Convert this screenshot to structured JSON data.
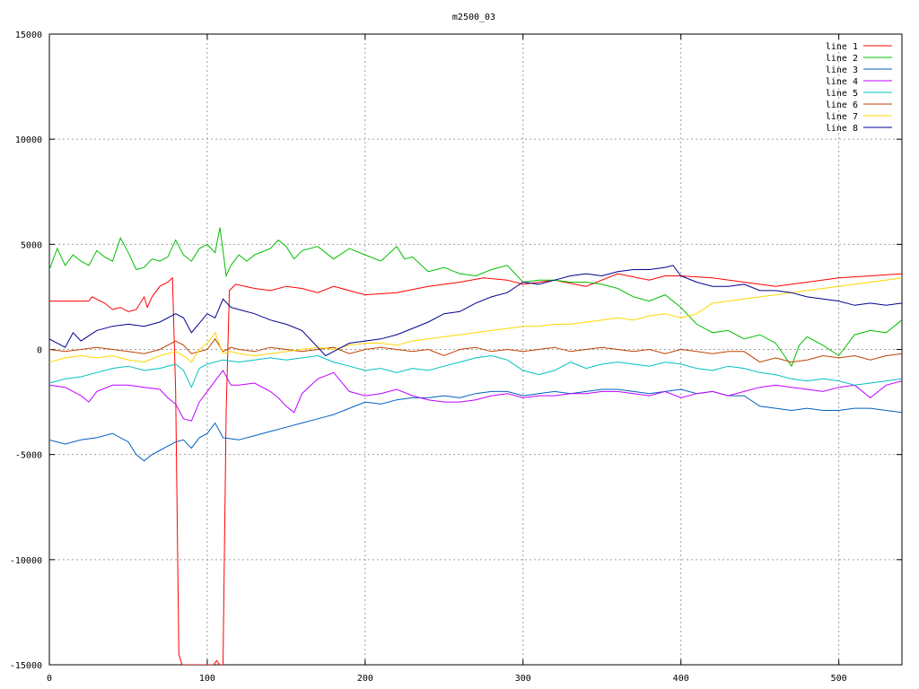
{
  "chart_data": {
    "type": "line",
    "title": "m2500_03",
    "xlabel": "",
    "ylabel": "",
    "xlim": [
      0,
      540
    ],
    "ylim": [
      -15000,
      15000
    ],
    "xticks": [
      0,
      100,
      200,
      300,
      400,
      500
    ],
    "yticks": [
      -15000,
      -10000,
      -5000,
      0,
      5000,
      10000,
      15000
    ],
    "grid": true,
    "legend_position": "top-right",
    "series": [
      {
        "name": "line 1",
        "color": "#ff0000",
        "x": [
          0,
          25,
          27,
          35,
          40,
          45,
          50,
          55,
          60,
          62,
          65,
          70,
          75,
          78,
          80,
          82,
          84,
          85,
          88,
          92,
          96,
          100,
          104,
          106,
          108,
          110,
          112,
          114,
          118,
          130,
          140,
          150,
          160,
          170,
          180,
          200,
          220,
          240,
          260,
          275,
          290,
          300,
          320,
          340,
          360,
          380,
          390,
          400,
          420,
          440,
          460,
          480,
          500,
          520,
          540
        ],
        "y": [
          2300,
          2300,
          2500,
          2200,
          1900,
          2000,
          1800,
          1900,
          2500,
          2000,
          2500,
          3000,
          3200,
          3400,
          -2000,
          -14500,
          -15000,
          -15000,
          -15000,
          -15000,
          -15000,
          -15000,
          -15000,
          -14800,
          -15000,
          -15000,
          -3000,
          2800,
          3100,
          2900,
          2800,
          3000,
          2900,
          2700,
          3000,
          2600,
          2700,
          3000,
          3200,
          3400,
          3300,
          3100,
          3300,
          3000,
          3600,
          3300,
          3500,
          3500,
          3400,
          3200,
          3000,
          3200,
          3400,
          3500,
          3600
        ]
      },
      {
        "name": "line 2",
        "color": "#00c000",
        "x": [
          0,
          5,
          10,
          15,
          20,
          25,
          30,
          35,
          40,
          45,
          50,
          55,
          60,
          65,
          70,
          75,
          80,
          85,
          90,
          95,
          100,
          105,
          108,
          110,
          112,
          115,
          120,
          125,
          130,
          140,
          145,
          150,
          155,
          160,
          170,
          180,
          190,
          200,
          210,
          220,
          225,
          230,
          240,
          250,
          260,
          270,
          280,
          290,
          300,
          310,
          320,
          330,
          340,
          350,
          360,
          370,
          380,
          390,
          400,
          410,
          420,
          430,
          440,
          450,
          460,
          470,
          475,
          480,
          490,
          500,
          510,
          520,
          530,
          540
        ],
        "y": [
          3800,
          4800,
          4000,
          4500,
          4200,
          4000,
          4700,
          4400,
          4200,
          5300,
          4600,
          3800,
          3900,
          4300,
          4200,
          4400,
          5200,
          4500,
          4200,
          4800,
          5000,
          4600,
          5800,
          4700,
          3500,
          4000,
          4500,
          4200,
          4500,
          4800,
          5200,
          4900,
          4300,
          4700,
          4900,
          4300,
          4800,
          4500,
          4200,
          4900,
          4300,
          4400,
          3700,
          3900,
          3600,
          3500,
          3800,
          4000,
          3200,
          3300,
          3300,
          3200,
          3200,
          3100,
          2900,
          2500,
          2300,
          2600,
          2000,
          1200,
          800,
          900,
          500,
          700,
          300,
          -800,
          200,
          600,
          200,
          -300,
          700,
          900,
          800,
          1400
        ]
      },
      {
        "name": "line 3",
        "color": "#0060c0",
        "x": [
          0,
          10,
          20,
          30,
          40,
          50,
          55,
          60,
          65,
          70,
          75,
          80,
          85,
          90,
          95,
          100,
          105,
          110,
          120,
          130,
          140,
          150,
          160,
          170,
          180,
          190,
          200,
          210,
          220,
          230,
          240,
          250,
          260,
          270,
          280,
          290,
          300,
          310,
          320,
          330,
          340,
          350,
          360,
          370,
          380,
          390,
          400,
          410,
          420,
          430,
          440,
          450,
          460,
          470,
          480,
          490,
          500,
          510,
          520,
          530,
          540
        ],
        "y": [
          -4300,
          -4500,
          -4300,
          -4200,
          -4000,
          -4400,
          -5000,
          -5300,
          -5000,
          -4800,
          -4600,
          -4400,
          -4300,
          -4700,
          -4200,
          -4000,
          -3500,
          -4200,
          -4300,
          -4100,
          -3900,
          -3700,
          -3500,
          -3300,
          -3100,
          -2800,
          -2500,
          -2600,
          -2400,
          -2300,
          -2300,
          -2200,
          -2300,
          -2100,
          -2000,
          -2000,
          -2200,
          -2100,
          -2000,
          -2100,
          -2000,
          -1900,
          -1900,
          -2000,
          -2100,
          -2000,
          -1900,
          -2100,
          -2000,
          -2200,
          -2200,
          -2700,
          -2800,
          -2900,
          -2800,
          -2900,
          -2900,
          -2800,
          -2800,
          -2900,
          -3000
        ]
      },
      {
        "name": "line 4",
        "color": "#c000ff",
        "x": [
          0,
          10,
          20,
          25,
          30,
          40,
          50,
          60,
          70,
          75,
          80,
          85,
          90,
          95,
          100,
          105,
          110,
          115,
          120,
          130,
          140,
          145,
          150,
          155,
          160,
          170,
          180,
          190,
          200,
          210,
          220,
          230,
          240,
          250,
          260,
          270,
          280,
          290,
          300,
          310,
          320,
          330,
          340,
          350,
          360,
          370,
          380,
          390,
          400,
          410,
          420,
          430,
          440,
          450,
          460,
          470,
          480,
          490,
          500,
          510,
          520,
          530,
          540
        ],
        "y": [
          -1700,
          -1800,
          -2200,
          -2500,
          -2000,
          -1700,
          -1700,
          -1800,
          -1900,
          -2300,
          -2600,
          -3300,
          -3400,
          -2500,
          -2000,
          -1500,
          -1000,
          -1700,
          -1700,
          -1600,
          -2000,
          -2300,
          -2700,
          -3000,
          -2100,
          -1400,
          -1100,
          -2000,
          -2200,
          -2100,
          -1900,
          -2200,
          -2400,
          -2500,
          -2500,
          -2400,
          -2200,
          -2100,
          -2300,
          -2200,
          -2200,
          -2100,
          -2100,
          -2000,
          -2000,
          -2100,
          -2200,
          -2000,
          -2300,
          -2100,
          -2000,
          -2200,
          -2000,
          -1800,
          -1700,
          -1800,
          -1900,
          -2000,
          -1800,
          -1700,
          -2300,
          -1700,
          -1500
        ]
      },
      {
        "name": "line 5",
        "color": "#00c0c0",
        "x": [
          0,
          10,
          20,
          30,
          40,
          50,
          60,
          70,
          80,
          85,
          90,
          95,
          100,
          110,
          120,
          130,
          140,
          150,
          160,
          170,
          180,
          190,
          200,
          210,
          220,
          230,
          240,
          250,
          260,
          270,
          280,
          290,
          300,
          310,
          320,
          330,
          340,
          350,
          360,
          370,
          380,
          390,
          400,
          410,
          420,
          430,
          440,
          450,
          460,
          470,
          480,
          490,
          500,
          510,
          520,
          530,
          540
        ],
        "y": [
          -1600,
          -1400,
          -1300,
          -1100,
          -900,
          -800,
          -1000,
          -900,
          -700,
          -1000,
          -1800,
          -900,
          -700,
          -500,
          -600,
          -500,
          -400,
          -500,
          -400,
          -300,
          -600,
          -800,
          -1000,
          -900,
          -1100,
          -900,
          -1000,
          -800,
          -600,
          -400,
          -300,
          -500,
          -1000,
          -1200,
          -1000,
          -600,
          -900,
          -700,
          -600,
          -700,
          -800,
          -600,
          -700,
          -900,
          -1000,
          -800,
          -900,
          -1100,
          -1200,
          -1400,
          -1500,
          -1400,
          -1500,
          -1700,
          -1600,
          -1500,
          -1400
        ]
      },
      {
        "name": "line 6",
        "color": "#c04000",
        "x": [
          0,
          10,
          20,
          30,
          40,
          50,
          60,
          70,
          80,
          85,
          90,
          95,
          100,
          105,
          110,
          115,
          120,
          130,
          140,
          150,
          160,
          170,
          180,
          190,
          200,
          210,
          220,
          230,
          240,
          250,
          260,
          270,
          280,
          290,
          300,
          310,
          320,
          330,
          340,
          350,
          360,
          370,
          380,
          390,
          400,
          410,
          420,
          430,
          440,
          450,
          460,
          470,
          480,
          490,
          500,
          510,
          520,
          530,
          540
        ],
        "y": [
          0,
          -100,
          0,
          100,
          0,
          -100,
          -200,
          0,
          400,
          200,
          -200,
          -100,
          0,
          500,
          -100,
          100,
          0,
          -100,
          100,
          0,
          -100,
          0,
          100,
          -200,
          0,
          100,
          0,
          -100,
          0,
          -300,
          0,
          100,
          -100,
          0,
          -100,
          0,
          100,
          -100,
          0,
          100,
          0,
          -100,
          0,
          -200,
          0,
          -100,
          -200,
          -100,
          -100,
          -600,
          -400,
          -600,
          -500,
          -300,
          -400,
          -300,
          -500,
          -300,
          -200
        ]
      },
      {
        "name": "line 7",
        "color": "#ffd700",
        "x": [
          0,
          10,
          20,
          30,
          40,
          50,
          60,
          70,
          80,
          85,
          90,
          95,
          100,
          105,
          110,
          115,
          120,
          130,
          140,
          150,
          160,
          170,
          180,
          190,
          200,
          210,
          220,
          230,
          240,
          250,
          260,
          270,
          280,
          290,
          300,
          310,
          320,
          330,
          340,
          350,
          360,
          370,
          380,
          390,
          400,
          410,
          420,
          430,
          440,
          450,
          460,
          470,
          480,
          490,
          500,
          510,
          520,
          530,
          540
        ],
        "y": [
          -600,
          -400,
          -300,
          -400,
          -300,
          -500,
          -600,
          -300,
          -100,
          -300,
          -600,
          0,
          300,
          800,
          -200,
          -100,
          -200,
          -300,
          -200,
          -100,
          0,
          100,
          0,
          200,
          300,
          300,
          200,
          400,
          500,
          600,
          700,
          800,
          900,
          1000,
          1100,
          1100,
          1200,
          1200,
          1300,
          1400,
          1500,
          1400,
          1600,
          1700,
          1500,
          1700,
          2200,
          2300,
          2400,
          2500,
          2600,
          2700,
          2800,
          2900,
          3000,
          3100,
          3200,
          3300,
          3400
        ]
      },
      {
        "name": "line 8",
        "color": "#000090",
        "x": [
          0,
          10,
          15,
          20,
          30,
          40,
          50,
          60,
          70,
          80,
          85,
          90,
          100,
          105,
          110,
          115,
          120,
          130,
          140,
          150,
          160,
          170,
          175,
          180,
          190,
          200,
          210,
          220,
          230,
          240,
          250,
          260,
          270,
          280,
          290,
          300,
          310,
          320,
          330,
          340,
          350,
          360,
          370,
          380,
          390,
          395,
          400,
          410,
          420,
          430,
          440,
          450,
          460,
          470,
          480,
          490,
          500,
          510,
          520,
          530,
          540
        ],
        "y": [
          500,
          100,
          800,
          400,
          900,
          1100,
          1200,
          1100,
          1300,
          1700,
          1500,
          800,
          1700,
          1500,
          2400,
          2000,
          1900,
          1700,
          1400,
          1200,
          900,
          100,
          -300,
          -100,
          300,
          400,
          500,
          700,
          1000,
          1300,
          1700,
          1800,
          2200,
          2500,
          2700,
          3200,
          3100,
          3300,
          3500,
          3600,
          3500,
          3700,
          3800,
          3800,
          3900,
          4000,
          3500,
          3200,
          3000,
          3000,
          3100,
          2800,
          2800,
          2700,
          2500,
          2400,
          2300,
          2100,
          2200,
          2100,
          2200
        ]
      }
    ]
  }
}
